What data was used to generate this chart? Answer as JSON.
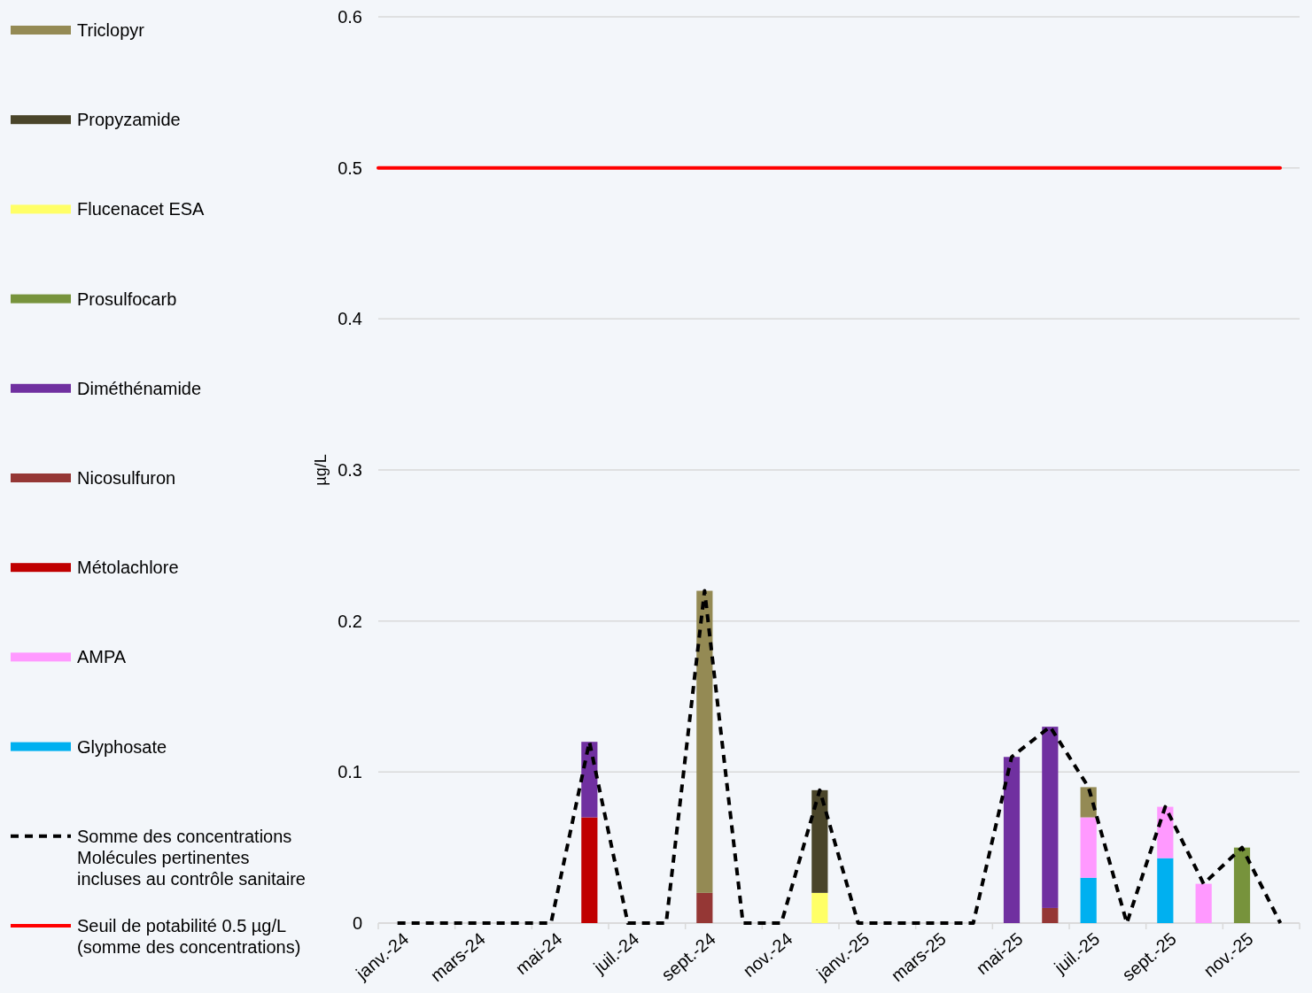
{
  "chart_data": {
    "type": "bar",
    "stacked": true,
    "ylabel": "µg/L",
    "categories": [
      "janv.-24",
      null,
      "mars-24",
      null,
      "mai-24",
      null,
      "juil.-24",
      null,
      "sept.-24",
      null,
      "nov.-24",
      null,
      "janv.-25",
      null,
      "mars-25",
      null,
      "mai-25",
      null,
      "juil.-25",
      null,
      "sept.-25",
      null,
      "nov.-25",
      null
    ],
    "ylim": [
      0,
      0.6
    ],
    "yticks": [
      0,
      0.1,
      0.2,
      0.3,
      0.4,
      0.5,
      0.6
    ],
    "grid": "y",
    "legend": "left",
    "series": [
      {
        "name": "Glyphosate",
        "color": "#00b0f0",
        "values": [
          null,
          null,
          null,
          null,
          null,
          null,
          null,
          null,
          null,
          null,
          null,
          null,
          null,
          null,
          null,
          null,
          null,
          null,
          0.03,
          null,
          0.043,
          null,
          null,
          null
        ]
      },
      {
        "name": "AMPA",
        "color": "#ff99ff",
        "values": [
          null,
          null,
          null,
          null,
          null,
          null,
          null,
          null,
          null,
          null,
          null,
          null,
          null,
          null,
          null,
          null,
          null,
          null,
          0.04,
          null,
          0.034,
          0.026,
          null,
          null
        ]
      },
      {
        "name": "Métolachlore",
        "color": "#c00000",
        "values": [
          null,
          null,
          null,
          null,
          null,
          0.07,
          null,
          null,
          null,
          null,
          null,
          null,
          null,
          null,
          null,
          null,
          null,
          null,
          null,
          null,
          null,
          null,
          null,
          null
        ]
      },
      {
        "name": "Nicosulfuron",
        "color": "#953735",
        "values": [
          null,
          null,
          null,
          null,
          null,
          null,
          null,
          null,
          0.02,
          null,
          null,
          null,
          null,
          null,
          null,
          null,
          null,
          0.01,
          null,
          null,
          null,
          null,
          null,
          null
        ]
      },
      {
        "name": "Diméthénamide",
        "color": "#7030a0",
        "values": [
          null,
          null,
          null,
          null,
          null,
          0.05,
          null,
          null,
          null,
          null,
          null,
          null,
          null,
          null,
          null,
          null,
          0.11,
          0.12,
          null,
          null,
          null,
          null,
          null,
          null
        ]
      },
      {
        "name": "Prosulfocarb",
        "color": "#77933c",
        "values": [
          null,
          null,
          null,
          null,
          null,
          null,
          null,
          null,
          null,
          null,
          null,
          null,
          null,
          null,
          null,
          null,
          null,
          null,
          null,
          null,
          null,
          null,
          0.05,
          null
        ]
      },
      {
        "name": "Flucenacet ESA",
        "color": "#ffff66",
        "values": [
          null,
          null,
          null,
          null,
          null,
          null,
          null,
          null,
          null,
          null,
          null,
          0.02,
          null,
          null,
          null,
          null,
          null,
          null,
          null,
          null,
          null,
          null,
          null,
          null
        ]
      },
      {
        "name": "Propyzamide",
        "color": "#4a452a",
        "values": [
          null,
          null,
          null,
          null,
          null,
          null,
          null,
          null,
          null,
          null,
          null,
          0.068,
          null,
          null,
          null,
          null,
          null,
          null,
          null,
          null,
          null,
          null,
          null,
          null
        ]
      },
      {
        "name": "Triclopyr",
        "color": "#948a54",
        "values": [
          null,
          null,
          null,
          null,
          null,
          null,
          null,
          null,
          0.2,
          null,
          null,
          null,
          null,
          null,
          null,
          null,
          null,
          null,
          0.02,
          null,
          null,
          null,
          null,
          null
        ]
      },
      {
        "name": "Somme des concentrations\nMolécules pertinentes\nincluses au contrôle sanitaire",
        "type": "line",
        "color": "#000000",
        "line_style": "dashed",
        "values": [
          0,
          0,
          0,
          0,
          0,
          0.12,
          0,
          0,
          0.22,
          0,
          0,
          0.088,
          0,
          0,
          0,
          0,
          0.11,
          0.13,
          0.09,
          0,
          0.077,
          0.026,
          0.05,
          0
        ]
      }
    ],
    "ref_lines": [
      {
        "axis": "y",
        "value": 0.5,
        "label": "Seuil de potabilité 0.5 µg/L\n(somme des concentrations)",
        "color": "#ff0000",
        "line_style": "solid"
      }
    ]
  }
}
